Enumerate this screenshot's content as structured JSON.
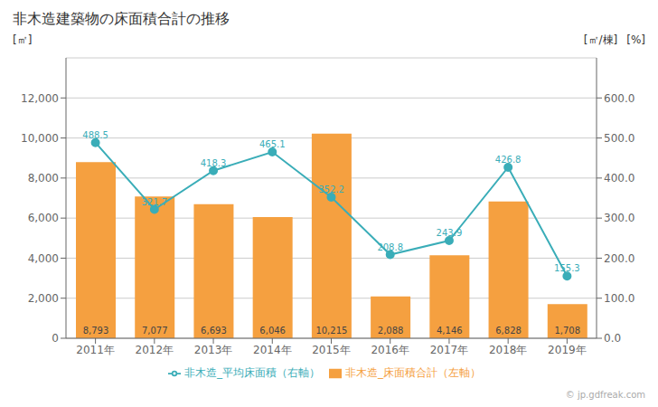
{
  "chart_data": {
    "type": "bar",
    "title": "非木造建築物の床面積合計の推移",
    "categories": [
      "2011年",
      "2012年",
      "2013年",
      "2014年",
      "2015年",
      "2016年",
      "2017年",
      "2018年",
      "2019年"
    ],
    "series": [
      {
        "name": "非木造_床面積合計（左軸）",
        "type": "bar",
        "color": "#f5a040",
        "values": [
          8793,
          7077,
          6693,
          6046,
          10215,
          2088,
          4146,
          6828,
          1708
        ],
        "value_labels": [
          "8,793",
          "7,077",
          "6,693",
          "6,046",
          "10,215",
          "2,088",
          "4,146",
          "6,828",
          "1,708"
        ],
        "data_labels": true
      },
      {
        "name": "非木造_平均床面積（右軸）",
        "type": "line",
        "axis": "y2",
        "color": "#3aadb8",
        "marker": "circle",
        "values": [
          488.5,
          321.7,
          418.3,
          465.1,
          352.2,
          208.8,
          243.9,
          426.8,
          155.3
        ],
        "data_labels": true
      }
    ],
    "ylabel": "[㎡]",
    "y2label": [
      "[㎡/棟]",
      "[%]"
    ],
    "ylim": [
      0,
      14000
    ],
    "yticks": [
      0,
      {
        "value": 2000,
        "label": "2,000"
      },
      {
        "value": 4000,
        "label": "4,000"
      },
      {
        "value": 6000,
        "label": "6,000"
      },
      {
        "value": 8000,
        "label": "8,000"
      },
      {
        "value": 10000,
        "label": "10,000"
      },
      {
        "value": 12000,
        "label": "12,000"
      }
    ],
    "y2lim": [
      0,
      700
    ],
    "y2ticks": [
      {
        "value": 0,
        "label": "0.0"
      },
      {
        "value": 100,
        "label": "100.0"
      },
      {
        "value": 200,
        "label": "200.0"
      },
      {
        "value": 300,
        "label": "300.0"
      },
      {
        "value": 400,
        "label": "400.0"
      },
      {
        "value": 500,
        "label": "500.0"
      },
      {
        "value": 600,
        "label": "600.0"
      }
    ],
    "grid": true,
    "legend": "bottom",
    "annotations": [
      "© jp.gdfreak.com"
    ]
  }
}
